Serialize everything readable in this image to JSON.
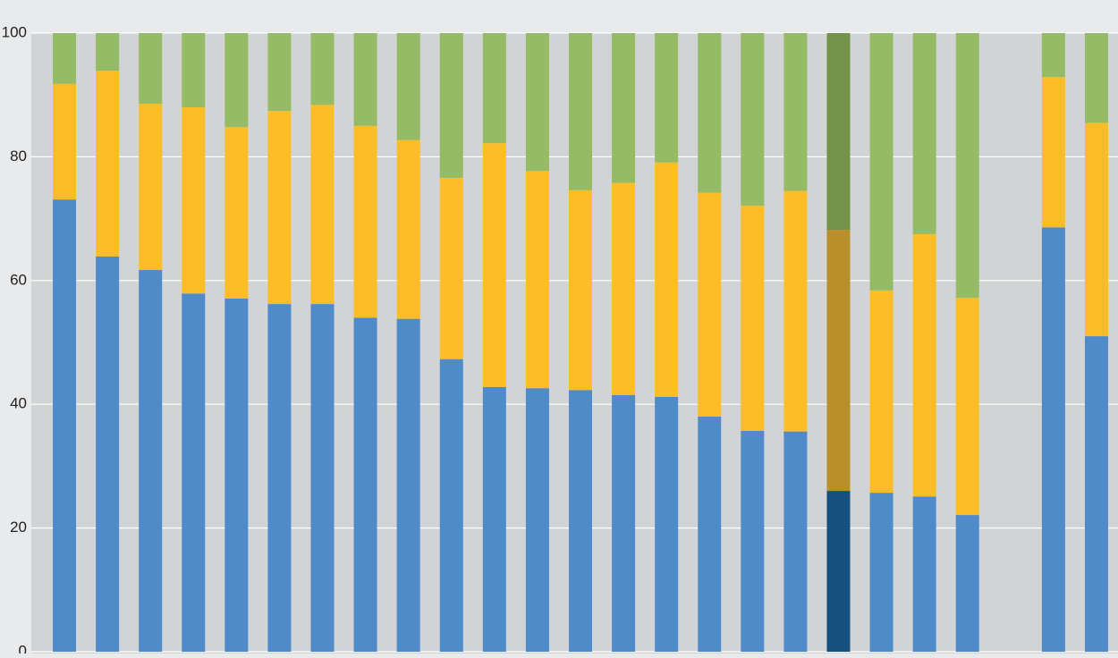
{
  "chart_data": {
    "type": "stacked_bar",
    "categories": [
      null,
      null,
      null,
      null,
      null,
      null,
      null,
      null,
      null,
      null,
      null,
      null,
      null,
      null,
      null,
      null,
      null,
      null,
      null,
      null,
      null,
      null,
      null,
      null,
      null
    ],
    "series": [
      {
        "color": "#4f8ac9",
        "highlight_color": "#16507f",
        "values": [
          73.1,
          63.9,
          61.7,
          57.9,
          57.1,
          56.2,
          56.2,
          54.0,
          53.8,
          47.3,
          42.8,
          42.6,
          42.3,
          41.5,
          41.2,
          38.0,
          35.7,
          35.6,
          26.0,
          25.7,
          25.1,
          22.1,
          null,
          68.6,
          51.0
        ]
      },
      {
        "color": "#fdbd27",
        "highlight_color": "#b98f2b",
        "values": [
          18.7,
          30.0,
          26.9,
          30.1,
          27.7,
          31.2,
          32.2,
          31.0,
          28.9,
          29.3,
          39.4,
          35.1,
          32.3,
          34.3,
          37.9,
          36.2,
          36.4,
          38.9,
          42.2,
          32.7,
          42.4,
          35.1,
          null,
          24.3,
          34.5
        ]
      },
      {
        "color": "#95bb66",
        "highlight_color": "#73924a",
        "values": [
          8.2,
          6.1,
          11.4,
          12.0,
          15.2,
          12.6,
          11.6,
          15.0,
          17.3,
          23.4,
          17.8,
          22.3,
          25.4,
          24.2,
          20.9,
          25.8,
          27.9,
          25.5,
          31.8,
          41.6,
          32.5,
          42.8,
          null,
          7.1,
          14.5
        ]
      }
    ],
    "highlight_index": 18,
    "ylim": [
      0,
      100
    ],
    "yticks": [
      0,
      20,
      40,
      60,
      80,
      100
    ],
    "grid": true
  }
}
